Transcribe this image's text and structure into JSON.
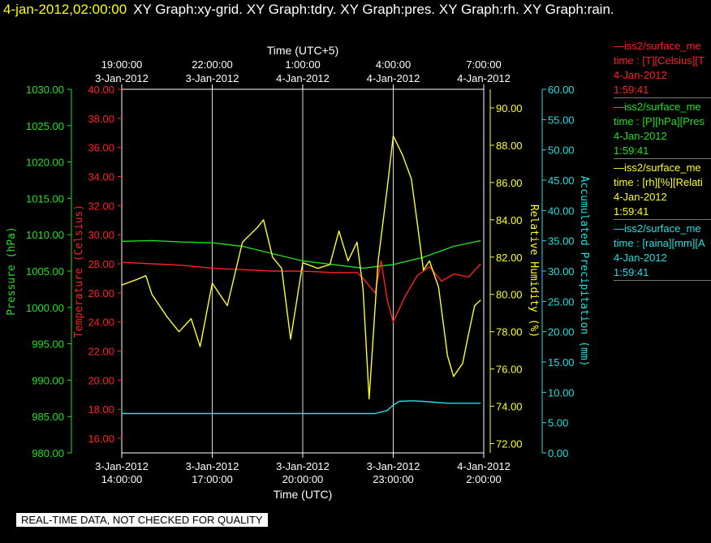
{
  "header": {
    "datetime": "4-jan-2012,02:00:00",
    "graphs": "XY Graph:xy-grid.  XY Graph:tdry.  XY Graph:pres.  XY Graph:rh.  XY Graph:rain."
  },
  "footer": "REAL-TIME DATA, NOT CHECKED FOR QUALITY",
  "legend": [
    {
      "line1": "—iss2/surface_me",
      "line2": "time : [T][Celsius][T",
      "line3": "4-Jan-2012",
      "line4": "1:59:41",
      "color": "#ff2020"
    },
    {
      "line1": "—iss2/surface_me",
      "line2": "time : [P][hPa][Pres",
      "line3": "4-Jan-2012",
      "line4": "1:59:41",
      "color": "#20e020"
    },
    {
      "line1": "—iss2/surface_me",
      "line2": "time : [rh][%][Relati",
      "line3": "4-Jan-2012",
      "line4": "1:59:41",
      "color": "#ffff20"
    },
    {
      "line1": "—iss2/surface_me",
      "line2": "time : [raina][mm][A",
      "line3": "4-Jan-2012",
      "line4": "1:59:41",
      "color": "#20e0e0"
    }
  ],
  "chart_data": {
    "type": "line",
    "x_top_label": "Time (UTC+5)",
    "x_bottom_label": "Time (UTC)",
    "x_range_hours": [
      0,
      12
    ],
    "x_ticks_bottom": [
      {
        "h": 0,
        "date": "3-Jan-2012",
        "time": "14:00:00"
      },
      {
        "h": 3,
        "date": "3-Jan-2012",
        "time": "17:00:00"
      },
      {
        "h": 6,
        "date": "3-Jan-2012",
        "time": "20:00:00"
      },
      {
        "h": 9,
        "date": "3-Jan-2012",
        "time": "23:00:00"
      },
      {
        "h": 12,
        "date": "4-Jan-2012",
        "time": "2:00:00"
      }
    ],
    "x_ticks_top": [
      {
        "h": 0,
        "time": "19:00:00",
        "date": "3-Jan-2012"
      },
      {
        "h": 3,
        "time": "22:00:00",
        "date": "3-Jan-2012"
      },
      {
        "h": 6,
        "time": "1:00:00",
        "date": "4-Jan-2012"
      },
      {
        "h": 9,
        "time": "4:00:00",
        "date": "4-Jan-2012"
      },
      {
        "h": 12,
        "time": "7:00:00",
        "date": "4-Jan-2012"
      }
    ],
    "grid": true,
    "axes": {
      "pressure": {
        "label": "Pressure (hPa)",
        "color": "#20e020",
        "range": [
          980,
          1030
        ],
        "ticks": [
          "980.00",
          "985.00",
          "990.00",
          "995.00",
          "1000.00",
          "1005.00",
          "1010.00",
          "1015.00",
          "1020.00",
          "1025.00",
          "1030.00"
        ]
      },
      "temperature": {
        "label": "Temperature (Celsius)",
        "color": "#ff2020",
        "range": [
          15,
          40
        ],
        "ticks": [
          "16.00",
          "18.00",
          "20.00",
          "22.00",
          "24.00",
          "26.00",
          "28.00",
          "30.00",
          "32.00",
          "34.00",
          "36.00",
          "38.00",
          "40.00"
        ]
      },
      "rh": {
        "label": "Relative Humidity (%)",
        "color": "#ffff20",
        "range": [
          71.5,
          91
        ],
        "ticks": [
          "72.00",
          "74.00",
          "76.00",
          "78.00",
          "80.00",
          "82.00",
          "84.00",
          "86.00",
          "88.00",
          "90.00"
        ]
      },
      "rain": {
        "label": "Accumulated Precipitation (mm)",
        "color": "#20e0e0",
        "range": [
          0,
          60
        ],
        "ticks": [
          "0.00",
          "5.00",
          "10.00",
          "15.00",
          "20.00",
          "25.00",
          "30.00",
          "35.00",
          "40.00",
          "45.00",
          "50.00",
          "55.00",
          "60.00"
        ]
      }
    },
    "series": [
      {
        "key": "pressure",
        "x": [
          0,
          1,
          2,
          3,
          4,
          5,
          6,
          7,
          8,
          9,
          10,
          11,
          11.9
        ],
        "y": [
          1009.1,
          1009.2,
          1009.0,
          1008.9,
          1008.4,
          1007.4,
          1006.4,
          1005.9,
          1005.4,
          1005.9,
          1006.9,
          1008.4,
          1009.2
        ]
      },
      {
        "key": "temperature",
        "x": [
          0,
          1,
          2,
          3,
          4,
          5,
          6,
          7,
          7.5,
          7.8,
          8,
          8.4,
          8.6,
          8.8,
          9,
          9.4,
          9.8,
          10.2,
          10.6,
          11,
          11.5,
          11.9
        ],
        "y": [
          28.1,
          28.0,
          27.9,
          27.7,
          27.6,
          27.5,
          27.5,
          27.4,
          27.4,
          27.4,
          27.0,
          26.0,
          28.2,
          25.5,
          24.0,
          25.8,
          27.2,
          27.8,
          26.8,
          27.3,
          27.1,
          28.0
        ]
      },
      {
        "key": "rh",
        "x": [
          0,
          0.5,
          0.8,
          1,
          1.5,
          1.9,
          2.3,
          2.6,
          3,
          3.5,
          4,
          4.5,
          4.7,
          5,
          5.3,
          5.6,
          6,
          6.5,
          6.9,
          7.2,
          7.5,
          7.8,
          8,
          8.2,
          8.5,
          8.8,
          9,
          9.3,
          9.6,
          9.8,
          10,
          10.2,
          10.5,
          10.8,
          11,
          11.3,
          11.5,
          11.7,
          11.9
        ],
        "y": [
          80.5,
          80.8,
          81.0,
          80.0,
          78.8,
          78.0,
          78.7,
          77.2,
          80.6,
          79.4,
          82.8,
          83.6,
          84.0,
          82.0,
          81.4,
          77.6,
          81.7,
          81.4,
          81.6,
          83.4,
          81.8,
          82.8,
          80.3,
          74.4,
          81.8,
          85.7,
          88.5,
          87.5,
          86.2,
          83.8,
          81.3,
          81.8,
          80.4,
          76.7,
          75.6,
          76.3,
          77.9,
          79.4,
          79.7
        ]
      },
      {
        "key": "rain",
        "x": [
          0,
          2,
          4,
          6,
          8,
          8.4,
          8.8,
          9,
          9.2,
          9.6,
          10,
          10.5,
          10.8,
          11,
          11.9
        ],
        "y": [
          6.5,
          6.5,
          6.5,
          6.5,
          6.5,
          6.5,
          7.0,
          7.9,
          8.5,
          8.6,
          8.5,
          8.3,
          8.2,
          8.2,
          8.2
        ]
      }
    ]
  }
}
